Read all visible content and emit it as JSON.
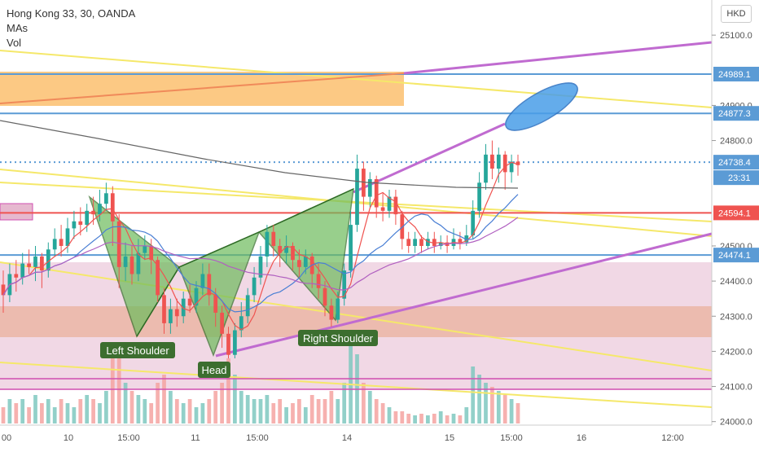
{
  "header": {
    "title": "Hong Kong 33, 30, OANDA",
    "indicators": [
      "MAs",
      "Vol"
    ],
    "currency": "HKD"
  },
  "colors": {
    "bull": "#26a69a",
    "bear": "#ef5350",
    "blue_line": "#5b9bd5",
    "red_line": "#f06a6a",
    "purple_line": "#c06bd0",
    "yellow_line": "#f5e86a",
    "pattern_fill": "#6dbb5c",
    "orange_zone": "#fbbf6f",
    "pink_zone": "#e6b8cf",
    "salmon_zone": "#eaa98a"
  },
  "chart_data": {
    "type": "candlestick",
    "x_ticks": [
      "00",
      "10",
      "15:00",
      "11",
      "15:00",
      "14",
      "15",
      "15:00",
      "16",
      "12:00"
    ],
    "y_ticks": [
      "25100.0",
      "24900.0",
      "24800.0",
      "24500.0",
      "24400.0",
      "24300.0",
      "24200.0",
      "24100.0",
      "24000.0"
    ],
    "ylim": [
      23990,
      25200
    ],
    "price_labels": [
      {
        "value": 24989.1,
        "text": "24989.1",
        "color": "#5b9bd5"
      },
      {
        "value": 24877.3,
        "text": "24877.3",
        "color": "#5b9bd5"
      },
      {
        "value": 24738.4,
        "text": "24738.4",
        "color": "#5b9bd5"
      },
      {
        "value": 24594.1,
        "text": "24594.1",
        "color": "#ef5350"
      },
      {
        "value": 24474.1,
        "text": "24474.1",
        "color": "#5b9bd5"
      }
    ],
    "countdown": "23:31",
    "annotations": [
      "Left Shoulder",
      "Head",
      "Right Shoulder"
    ],
    "candles": [
      [
        24390,
        24360,
        24430,
        24310
      ],
      [
        24360,
        24420,
        24450,
        24340
      ],
      [
        24420,
        24410,
        24460,
        24370
      ],
      [
        24410,
        24450,
        24480,
        24390
      ],
      [
        24450,
        24440,
        24490,
        24420
      ],
      [
        24440,
        24470,
        24500,
        24400
      ],
      [
        24470,
        24430,
        24480,
        24380
      ],
      [
        24430,
        24490,
        24510,
        24410
      ],
      [
        24490,
        24520,
        24550,
        24470
      ],
      [
        24520,
        24500,
        24560,
        24470
      ],
      [
        24500,
        24550,
        24580,
        24480
      ],
      [
        24550,
        24570,
        24600,
        24520
      ],
      [
        24570,
        24560,
        24610,
        24530
      ],
      [
        24560,
        24600,
        24620,
        24540
      ],
      [
        24600,
        24590,
        24640,
        24560
      ],
      [
        24590,
        24620,
        24660,
        24570
      ],
      [
        24620,
        24650,
        24680,
        24600
      ],
      [
        24650,
        24570,
        24670,
        24500
      ],
      [
        24570,
        24440,
        24590,
        24380
      ],
      [
        24440,
        24470,
        24510,
        24400
      ],
      [
        24470,
        24420,
        24500,
        24390
      ],
      [
        24420,
        24480,
        24520,
        24400
      ],
      [
        24480,
        24500,
        24530,
        24460
      ],
      [
        24500,
        24460,
        24520,
        24420
      ],
      [
        24460,
        24360,
        24470,
        24340
      ],
      [
        24360,
        24280,
        24380,
        24250
      ],
      [
        24280,
        24320,
        24350,
        24250
      ],
      [
        24320,
        24300,
        24350,
        24270
      ],
      [
        24300,
        24350,
        24370,
        24280
      ],
      [
        24350,
        24330,
        24390,
        24310
      ],
      [
        24330,
        24380,
        24400,
        24310
      ],
      [
        24380,
        24420,
        24450,
        24360
      ],
      [
        24420,
        24360,
        24450,
        24330
      ],
      [
        24360,
        24310,
        24380,
        24270
      ],
      [
        24310,
        24250,
        24330,
        24210
      ],
      [
        24250,
        24190,
        24270,
        24180
      ],
      [
        24190,
        24260,
        24280,
        24180
      ],
      [
        24260,
        24300,
        24340,
        24240
      ],
      [
        24300,
        24360,
        24380,
        24280
      ],
      [
        24360,
        24410,
        24440,
        24340
      ],
      [
        24410,
        24470,
        24500,
        24390
      ],
      [
        24470,
        24540,
        24560,
        24440
      ],
      [
        24540,
        24500,
        24560,
        24470
      ],
      [
        24500,
        24480,
        24520,
        24440
      ],
      [
        24480,
        24500,
        24530,
        24450
      ],
      [
        24500,
        24460,
        24510,
        24430
      ],
      [
        24460,
        24440,
        24490,
        24410
      ],
      [
        24440,
        24470,
        24490,
        24420
      ],
      [
        24470,
        24420,
        24480,
        24380
      ],
      [
        24420,
        24380,
        24450,
        24350
      ],
      [
        24380,
        24330,
        24400,
        24300
      ],
      [
        24330,
        24290,
        24350,
        24270
      ],
      [
        24290,
        24350,
        24370,
        24280
      ],
      [
        24350,
        24430,
        24450,
        24330
      ],
      [
        24430,
        24560,
        24600,
        24410
      ],
      [
        24560,
        24720,
        24760,
        24540
      ],
      [
        24720,
        24640,
        24740,
        24600
      ],
      [
        24640,
        24690,
        24710,
        24610
      ],
      [
        24690,
        24610,
        24700,
        24580
      ],
      [
        24610,
        24600,
        24650,
        24570
      ],
      [
        24600,
        24640,
        24660,
        24580
      ],
      [
        24640,
        24590,
        24660,
        24560
      ],
      [
        24590,
        24520,
        24600,
        24490
      ],
      [
        24520,
        24500,
        24540,
        24480
      ],
      [
        24500,
        24520,
        24540,
        24480
      ],
      [
        24520,
        24500,
        24530,
        24480
      ],
      [
        24500,
        24520,
        24540,
        24490
      ],
      [
        24520,
        24500,
        24540,
        24480
      ],
      [
        24500,
        24510,
        24530,
        24490
      ],
      [
        24510,
        24500,
        24530,
        24480
      ],
      [
        24500,
        24520,
        24550,
        24490
      ],
      [
        24520,
        24510,
        24540,
        24490
      ],
      [
        24510,
        24530,
        24560,
        24500
      ],
      [
        24530,
        24600,
        24630,
        24520
      ],
      [
        24600,
        24680,
        24710,
        24580
      ],
      [
        24680,
        24760,
        24790,
        24660
      ],
      [
        24760,
        24720,
        24800,
        24690
      ],
      [
        24720,
        24760,
        24780,
        24680
      ],
      [
        24760,
        24710,
        24770,
        24660
      ],
      [
        24710,
        24740,
        24760,
        24680
      ],
      [
        24740,
        24730,
        24760,
        24700
      ]
    ],
    "volumes": [
      0.2,
      0.3,
      0.25,
      0.3,
      0.2,
      0.35,
      0.25,
      0.3,
      0.2,
      0.3,
      0.25,
      0.2,
      0.3,
      0.35,
      0.3,
      0.25,
      0.4,
      0.9,
      0.8,
      0.5,
      0.4,
      0.35,
      0.3,
      0.25,
      0.5,
      0.6,
      0.4,
      0.3,
      0.25,
      0.3,
      0.2,
      0.25,
      0.3,
      0.4,
      0.5,
      0.8,
      0.6,
      0.4,
      0.35,
      0.3,
      0.3,
      0.35,
      0.25,
      0.3,
      0.2,
      0.25,
      0.3,
      0.2,
      0.35,
      0.3,
      0.3,
      0.4,
      0.3,
      0.5,
      0.95,
      0.85,
      0.5,
      0.4,
      0.3,
      0.25,
      0.2,
      0.15,
      0.15,
      0.12,
      0.1,
      0.12,
      0.1,
      0.12,
      0.15,
      0.1,
      0.12,
      0.1,
      0.2,
      0.7,
      0.6,
      0.5,
      0.45,
      0.4,
      0.35,
      0.3,
      0.25
    ]
  }
}
